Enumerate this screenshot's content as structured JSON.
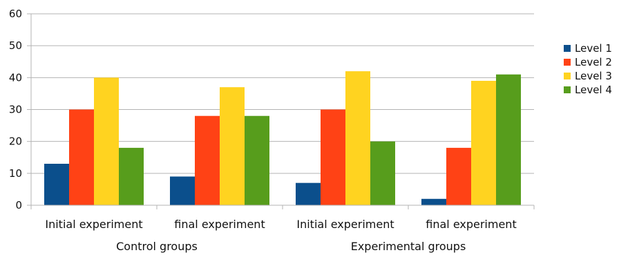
{
  "chart_data": {
    "type": "bar",
    "categories": [
      "Initial experiment",
      "final experiment",
      "Initial experiment",
      "final experiment"
    ],
    "groups": [
      "Control groups",
      "Experimental groups"
    ],
    "series": [
      {
        "name": "Level 1",
        "color": "#0b4f8c",
        "values": [
          13,
          9,
          7,
          2
        ]
      },
      {
        "name": "Level 2",
        "color": "#ff4215",
        "values": [
          30,
          28,
          30,
          18
        ]
      },
      {
        "name": "Level 3",
        "color": "#ffd320",
        "values": [
          40,
          37,
          42,
          39
        ]
      },
      {
        "name": "Level 4",
        "color": "#579d1c",
        "values": [
          18,
          28,
          20,
          41
        ]
      }
    ],
    "ylim": [
      0,
      60
    ],
    "yticks": [
      0,
      10,
      20,
      30,
      40,
      50,
      60
    ],
    "grid": true,
    "legend": "right",
    "title": "",
    "xlabel": "",
    "ylabel": ""
  }
}
